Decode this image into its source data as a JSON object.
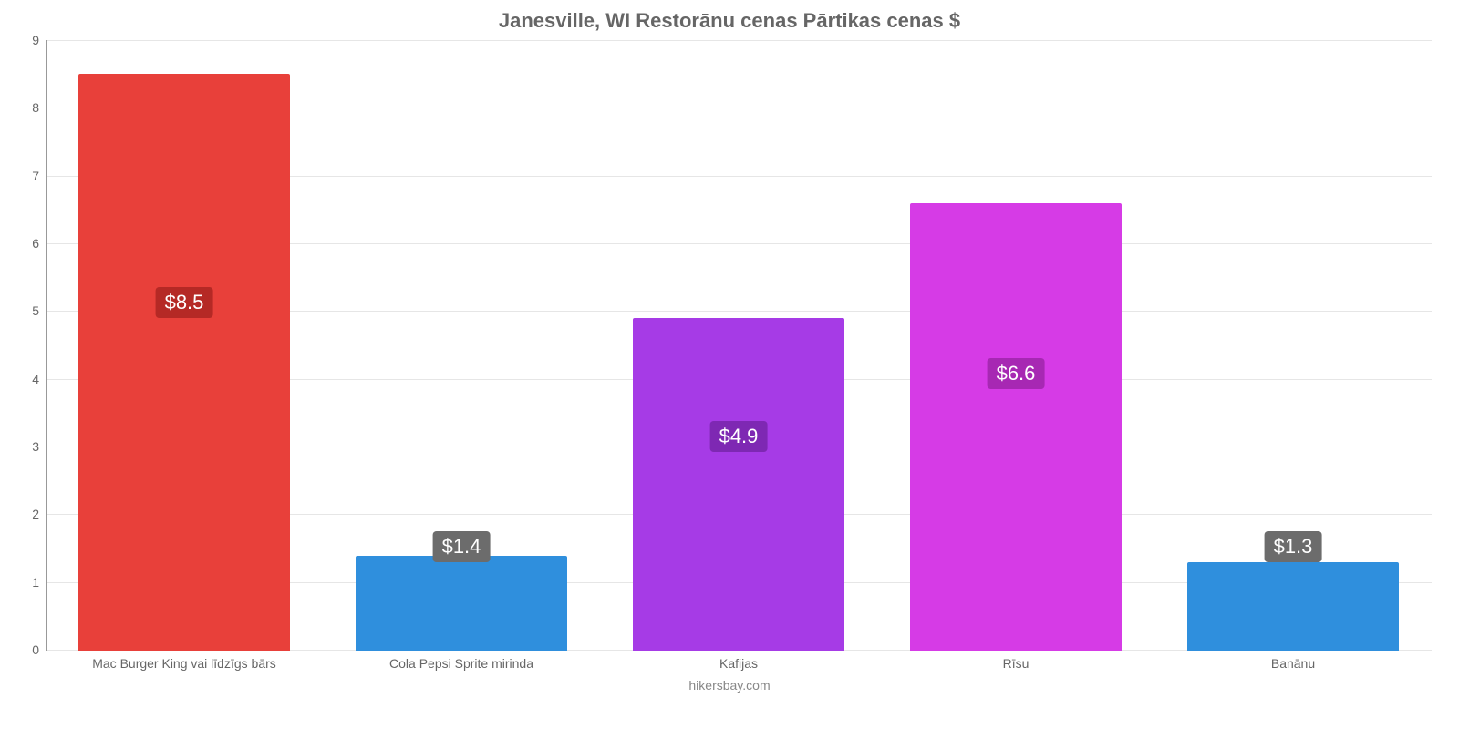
{
  "chart": {
    "type": "bar",
    "title": "Janesville, WI Restorānu cenas Pārtikas cenas $",
    "title_fontsize": 22,
    "title_color": "#666666",
    "attribution": "hikersbay.com",
    "attribution_fontsize": 14,
    "attribution_color": "#888888",
    "background_color": "#ffffff",
    "axis_color": "#999999",
    "grid_color": "#e6e6e6",
    "ylim_min": 0,
    "ylim_max": 9,
    "ytick_step": 1,
    "yticks": [
      "0",
      "1",
      "2",
      "3",
      "4",
      "5",
      "6",
      "7",
      "8",
      "9"
    ],
    "ytick_fontsize": 14,
    "xlabel_fontsize": 14,
    "bar_width_pct": 76,
    "value_label_fontsize": 22,
    "categories": [
      {
        "label": "Mac Burger King vai līdzīgs bārs",
        "value": 8.5,
        "display": "$8.5",
        "bar_color": "#e8403a",
        "badge_color": "#b52925"
      },
      {
        "label": "Cola Pepsi Sprite mirinda",
        "value": 1.4,
        "display": "$1.4",
        "bar_color": "#2f8fdd",
        "badge_color": "#6c6c6c"
      },
      {
        "label": "Kafijas",
        "value": 4.9,
        "display": "$4.9",
        "bar_color": "#a63be6",
        "badge_color": "#7e28b3"
      },
      {
        "label": "Rīsu",
        "value": 6.6,
        "display": "$6.6",
        "bar_color": "#d63be6",
        "badge_color": "#a728b3"
      },
      {
        "label": "Banānu",
        "value": 1.3,
        "display": "$1.3",
        "bar_color": "#2f8fdd",
        "badge_color": "#6c6c6c"
      }
    ]
  }
}
